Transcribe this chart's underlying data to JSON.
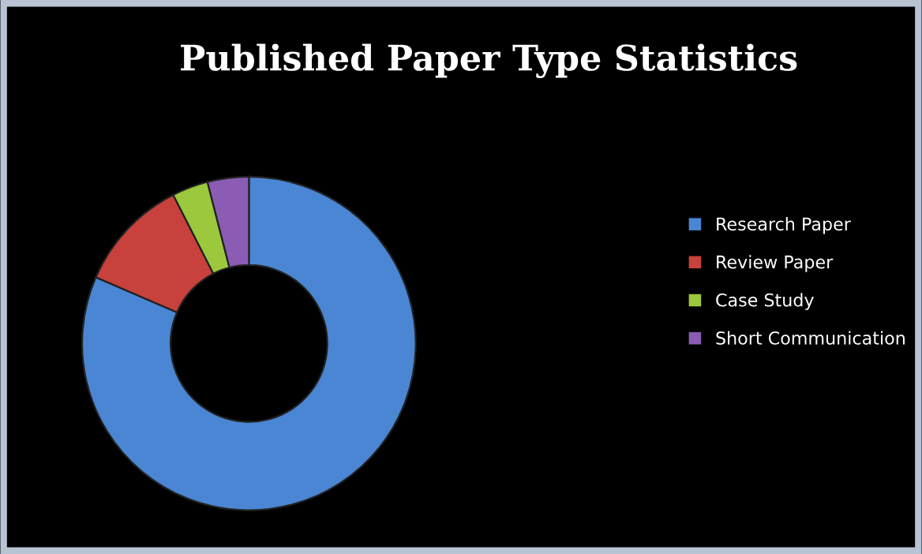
{
  "chart_data": {
    "type": "donut",
    "title": "Published Paper Type Statistics",
    "categories": [
      "Research Paper",
      "Review Paper",
      "Case Study",
      "Short Communication"
    ],
    "values": [
      81.5,
      11,
      3.5,
      4
    ],
    "colors": [
      "#4a86d4",
      "#c8413c",
      "#9bc83c",
      "#8a5cb4"
    ],
    "legend": "right"
  }
}
